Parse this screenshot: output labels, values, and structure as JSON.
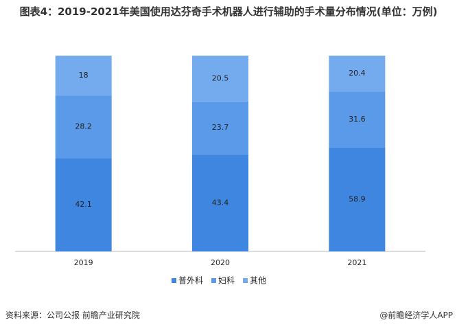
{
  "chart_data": {
    "type": "bar",
    "stack": "percent",
    "title": "图表4：2019-2021年美国使用达芬奇手术机器人进行辅助的手术量分布情况(单位：万例)",
    "categories": [
      "2019",
      "2020",
      "2021"
    ],
    "series": [
      {
        "name": "普外科",
        "color": "#3f86e0",
        "values": [
          42.1,
          43.4,
          58.9
        ]
      },
      {
        "name": "妇科",
        "color": "#5a9ae8",
        "values": [
          28.2,
          23.7,
          31.6
        ]
      },
      {
        "name": "其他",
        "color": "#74aaee",
        "values": [
          18,
          20.5,
          20.4
        ]
      }
    ],
    "legend": "bottom"
  },
  "footer": {
    "source": "资料来源：公司公报 前瞻产业研究院",
    "brand": "@前瞻经济学人APP"
  }
}
